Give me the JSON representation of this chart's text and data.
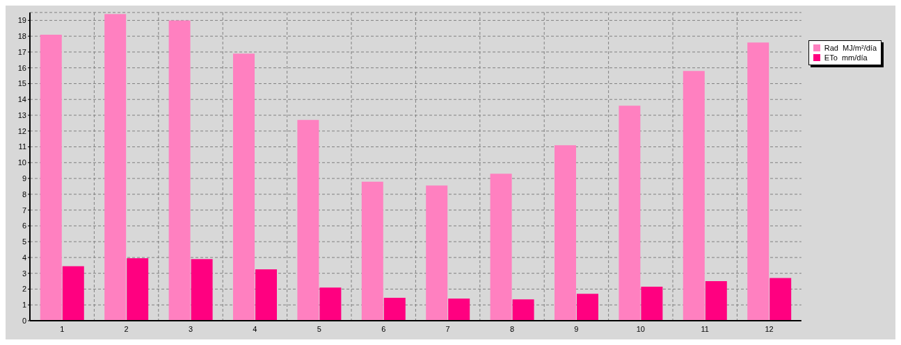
{
  "chart_data": {
    "type": "bar",
    "categories": [
      "1",
      "2",
      "3",
      "4",
      "5",
      "6",
      "7",
      "8",
      "9",
      "10",
      "11",
      "12"
    ],
    "series": [
      {
        "name": "Rad  MJ/m²/día",
        "color": "#ff80c0",
        "values": [
          18.1,
          19.4,
          19.0,
          16.9,
          12.7,
          8.8,
          8.55,
          9.3,
          11.1,
          13.6,
          15.8,
          17.6
        ]
      },
      {
        "name": "ETo  mm/día",
        "color": "#ff0080",
        "values": [
          3.45,
          3.95,
          3.9,
          3.25,
          2.1,
          1.45,
          1.4,
          1.35,
          1.7,
          2.15,
          2.5,
          2.7
        ]
      }
    ],
    "ylim": [
      0,
      19.5
    ],
    "yticks": [
      0,
      1,
      2,
      3,
      4,
      5,
      6,
      7,
      8,
      9,
      10,
      11,
      12,
      13,
      14,
      15,
      16,
      17,
      18,
      19
    ],
    "grid": true,
    "legend": "top right"
  }
}
